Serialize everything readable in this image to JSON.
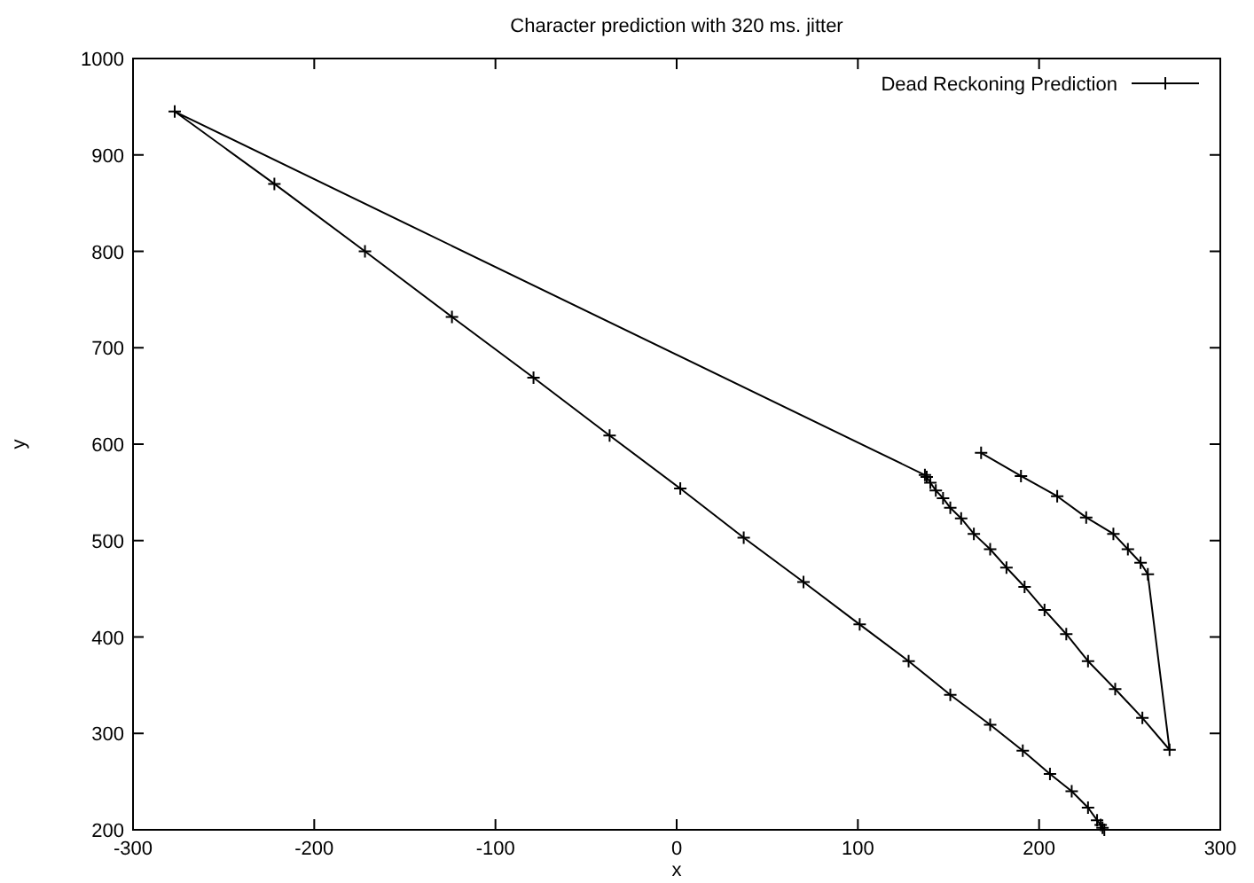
{
  "chart_data": {
    "type": "line",
    "title": "Character prediction with 320 ms. jitter",
    "xlabel": "x",
    "ylabel": "y",
    "xlim": [
      -300,
      300
    ],
    "ylim": [
      200,
      1000
    ],
    "xticks": [
      -300,
      -200,
      -100,
      0,
      100,
      200,
      300
    ],
    "yticks": [
      200,
      300,
      400,
      500,
      600,
      700,
      800,
      900,
      1000
    ],
    "grid": false,
    "legend": "top right",
    "marker": "cross",
    "line_style": "solid",
    "series": [
      {
        "name": "Dead Reckoning Prediction",
        "color": "#000000",
        "x": [
          168,
          190,
          210,
          226,
          241,
          249,
          256,
          260,
          272,
          257,
          242,
          227,
          215,
          203,
          192,
          182,
          173,
          164,
          157,
          151,
          147,
          143,
          140,
          138,
          137,
          -277,
          -222,
          -172,
          -124,
          -79,
          -37,
          2,
          37,
          70,
          101,
          128,
          151,
          173,
          191,
          206,
          218,
          227,
          232,
          234,
          235,
          236
        ],
        "values": [
          591,
          567,
          546,
          524,
          507,
          491,
          477,
          465,
          283,
          316,
          346,
          375,
          403,
          428,
          452,
          472,
          491,
          507,
          523,
          534,
          544,
          552,
          560,
          566,
          568,
          945,
          870,
          800,
          732,
          669,
          609,
          554,
          503,
          457,
          413,
          375,
          340,
          309,
          282,
          258,
          240,
          223,
          210,
          205,
          202,
          200
        ]
      }
    ]
  }
}
